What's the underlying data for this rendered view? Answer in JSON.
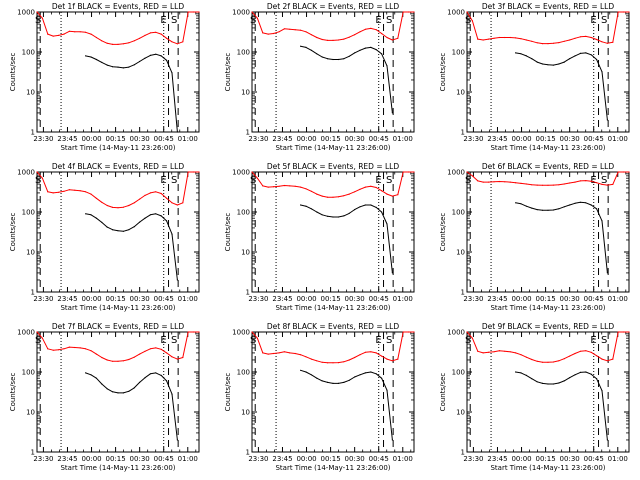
{
  "figure": {
    "background": "#ffffff",
    "series_colors": {
      "events": "#000000",
      "lld": "#ff0000"
    }
  },
  "chart_data": [
    {
      "type": "line",
      "title": "Det 1f BLACK = Events, RED = LLD",
      "xlabel": "Start Time (14-May-11 23:26:00)",
      "ylabel": "Counts/sec",
      "ylog": true,
      "ylim": [
        1,
        1000
      ],
      "xlim": [
        "23:26",
        "01:07"
      ],
      "yticks": [
        "1",
        "10",
        "100",
        "1000"
      ],
      "xticks": [
        "23:30",
        "23:45",
        "00:00",
        "00:15",
        "00:30",
        "00:45",
        "01:00"
      ],
      "markers": [
        "S",
        "E",
        "S"
      ],
      "series": [
        {
          "color": "#000000",
          "values": [
            null,
            null,
            null,
            null,
            null,
            null,
            null,
            null,
            null,
            80,
            75,
            65,
            55,
            47,
            43,
            42,
            40,
            42,
            48,
            58,
            70,
            82,
            88,
            80,
            62,
            30,
            1,
            null,
            null,
            null,
            null
          ]
        },
        {
          "color": "#ff0000",
          "values": [
            1000,
            700,
            280,
            250,
            260,
            280,
            330,
            320,
            320,
            310,
            280,
            230,
            190,
            165,
            155,
            155,
            160,
            170,
            190,
            220,
            260,
            300,
            310,
            280,
            220,
            180,
            160,
            180,
            1000,
            1000,
            1000
          ]
        }
      ]
    },
    {
      "type": "line",
      "title": "Det 2f BLACK = Events, RED = LLD",
      "xlabel": "Start Time (14-May-11 23:26:00)",
      "ylabel": "Counts/sec",
      "ylog": true,
      "ylim": [
        1,
        1000
      ],
      "xlim": [
        "23:26",
        "01:07"
      ],
      "yticks": [
        "1",
        "10",
        "100",
        "1000"
      ],
      "xticks": [
        "23:30",
        "23:45",
        "00:00",
        "00:15",
        "00:30",
        "00:45",
        "01:00"
      ],
      "markers": [
        "S",
        "E",
        "S"
      ],
      "series": [
        {
          "color": "#000000",
          "values": [
            null,
            null,
            null,
            null,
            null,
            null,
            null,
            null,
            null,
            140,
            130,
            110,
            90,
            75,
            68,
            65,
            65,
            68,
            78,
            95,
            110,
            125,
            130,
            115,
            90,
            45,
            3,
            null,
            null,
            null,
            null
          ]
        },
        {
          "color": "#ff0000",
          "values": [
            1000,
            700,
            300,
            280,
            290,
            320,
            380,
            370,
            360,
            350,
            320,
            270,
            230,
            205,
            195,
            195,
            200,
            210,
            235,
            270,
            320,
            370,
            390,
            360,
            290,
            230,
            200,
            220,
            1000,
            1000,
            1000
          ]
        }
      ]
    },
    {
      "type": "line",
      "title": "Det 3f BLACK = Events, RED = LLD",
      "xlabel": "Start Time (14-May-11 23:26:00)",
      "ylabel": "Counts/sec",
      "ylog": true,
      "ylim": [
        1,
        1000
      ],
      "xlim": [
        "23:26",
        "01:07"
      ],
      "yticks": [
        "1",
        "10",
        "100",
        "1000"
      ],
      "xticks": [
        "23:30",
        "23:45",
        "00:00",
        "00:15",
        "00:30",
        "00:45",
        "01:00"
      ],
      "markers": [
        "S",
        "E",
        "S"
      ],
      "series": [
        {
          "color": "#000000",
          "values": [
            null,
            null,
            null,
            null,
            null,
            null,
            null,
            null,
            null,
            95,
            90,
            80,
            68,
            56,
            50,
            48,
            47,
            50,
            56,
            68,
            80,
            92,
            95,
            85,
            65,
            32,
            2,
            null,
            null,
            null,
            null
          ]
        },
        {
          "color": "#ff0000",
          "values": [
            1000,
            600,
            210,
            200,
            210,
            220,
            230,
            230,
            230,
            225,
            215,
            200,
            185,
            170,
            162,
            162,
            165,
            172,
            185,
            200,
            220,
            240,
            245,
            230,
            205,
            180,
            165,
            175,
            1000,
            1000,
            1000
          ]
        }
      ]
    },
    {
      "type": "line",
      "title": "Det 4f BLACK = Events, RED = LLD",
      "xlabel": "Start Time (14-May-11 23:26:00)",
      "ylabel": "Counts/sec",
      "ylog": true,
      "ylim": [
        1,
        1000
      ],
      "xlim": [
        "23:26",
        "01:07"
      ],
      "yticks": [
        "1",
        "10",
        "100",
        "1000"
      ],
      "xticks": [
        "23:30",
        "23:45",
        "00:00",
        "00:15",
        "00:30",
        "00:45",
        "01:00"
      ],
      "markers": [
        "S",
        "E",
        "S"
      ],
      "series": [
        {
          "color": "#000000",
          "values": [
            null,
            null,
            null,
            null,
            null,
            null,
            null,
            null,
            null,
            90,
            85,
            70,
            55,
            42,
            36,
            34,
            33,
            36,
            43,
            56,
            70,
            85,
            90,
            80,
            60,
            28,
            2,
            null,
            null,
            null,
            null
          ]
        },
        {
          "color": "#ff0000",
          "values": [
            1000,
            700,
            320,
            300,
            310,
            330,
            360,
            350,
            340,
            320,
            280,
            220,
            175,
            145,
            130,
            128,
            132,
            145,
            170,
            210,
            260,
            300,
            320,
            290,
            220,
            170,
            150,
            170,
            1000,
            1000,
            1000
          ]
        }
      ]
    },
    {
      "type": "line",
      "title": "Det 5f BLACK = Events, RED = LLD",
      "xlabel": "Start Time (14-May-11 23:26:00)",
      "ylabel": "Counts/sec",
      "ylog": true,
      "ylim": [
        1,
        1000
      ],
      "xlim": [
        "23:26",
        "01:07"
      ],
      "yticks": [
        "1",
        "10",
        "100",
        "1000"
      ],
      "xticks": [
        "23:30",
        "23:45",
        "00:00",
        "00:15",
        "00:30",
        "00:45",
        "01:00"
      ],
      "markers": [
        "S",
        "E",
        "S"
      ],
      "series": [
        {
          "color": "#000000",
          "values": [
            null,
            null,
            null,
            null,
            null,
            null,
            null,
            null,
            null,
            150,
            140,
            120,
            100,
            85,
            78,
            75,
            75,
            80,
            92,
            115,
            135,
            150,
            150,
            130,
            100,
            50,
            3,
            null,
            null,
            null,
            null
          ]
        },
        {
          "color": "#ff0000",
          "values": [
            1000,
            700,
            450,
            420,
            430,
            440,
            460,
            450,
            440,
            420,
            380,
            330,
            280,
            250,
            235,
            235,
            240,
            255,
            280,
            320,
            370,
            420,
            440,
            410,
            340,
            280,
            250,
            270,
            1000,
            1000,
            1000
          ]
        }
      ]
    },
    {
      "type": "line",
      "title": "Det 6f BLACK = Events, RED = LLD",
      "xlabel": "Start Time (14-May-11 23:26:00)",
      "ylabel": "Counts/sec",
      "ylog": true,
      "ylim": [
        1,
        1000
      ],
      "xlim": [
        "23:26",
        "01:07"
      ],
      "yticks": [
        "1",
        "10",
        "100",
        "1000"
      ],
      "xticks": [
        "23:30",
        "23:45",
        "00:00",
        "00:15",
        "00:30",
        "00:45",
        "01:00"
      ],
      "markers": [
        "S",
        "E",
        "S"
      ],
      "series": [
        {
          "color": "#000000",
          "values": [
            null,
            null,
            null,
            null,
            null,
            null,
            null,
            null,
            null,
            170,
            160,
            140,
            125,
            115,
            110,
            110,
            112,
            120,
            135,
            150,
            165,
            175,
            170,
            150,
            120,
            60,
            3,
            null,
            null,
            null,
            null
          ]
        },
        {
          "color": "#ff0000",
          "values": [
            1000,
            800,
            600,
            560,
            560,
            570,
            580,
            570,
            560,
            540,
            520,
            500,
            480,
            470,
            465,
            465,
            470,
            480,
            500,
            530,
            560,
            600,
            610,
            590,
            540,
            490,
            470,
            490,
            1000,
            1000,
            1000
          ]
        }
      ]
    },
    {
      "type": "line",
      "title": "Det 7f BLACK = Events, RED = LLD",
      "xlabel": "Start Time (14-May-11 23:26:00)",
      "ylabel": "Counts/sec",
      "ylog": true,
      "ylim": [
        1,
        1000
      ],
      "xlim": [
        "23:26",
        "01:07"
      ],
      "yticks": [
        "1",
        "10",
        "100",
        "1000"
      ],
      "xticks": [
        "23:30",
        "23:45",
        "00:00",
        "00:15",
        "00:30",
        "00:45",
        "01:00"
      ],
      "markers": [
        "S",
        "E",
        "S"
      ],
      "series": [
        {
          "color": "#000000",
          "values": [
            null,
            null,
            null,
            null,
            null,
            null,
            null,
            null,
            null,
            95,
            85,
            70,
            50,
            38,
            32,
            30,
            30,
            33,
            40,
            55,
            72,
            90,
            95,
            82,
            60,
            28,
            2,
            null,
            null,
            null,
            null
          ]
        },
        {
          "color": "#ff0000",
          "values": [
            1000,
            700,
            380,
            350,
            360,
            380,
            420,
            410,
            400,
            380,
            340,
            280,
            230,
            200,
            185,
            185,
            190,
            205,
            235,
            280,
            330,
            380,
            400,
            370,
            300,
            240,
            210,
            230,
            1000,
            1000,
            1000
          ]
        }
      ]
    },
    {
      "type": "line",
      "title": "Det 8f BLACK = Events, RED = LLD",
      "xlabel": "Start Time (14-May-11 23:26:00)",
      "ylabel": "Counts/sec",
      "ylog": true,
      "ylim": [
        1,
        1000
      ],
      "xlim": [
        "23:26",
        "01:07"
      ],
      "yticks": [
        "1",
        "10",
        "100",
        "1000"
      ],
      "xticks": [
        "23:30",
        "23:45",
        "00:00",
        "00:15",
        "00:30",
        "00:45",
        "01:00"
      ],
      "markers": [
        "S",
        "E",
        "S"
      ],
      "series": [
        {
          "color": "#000000",
          "values": [
            null,
            null,
            null,
            null,
            null,
            null,
            null,
            null,
            null,
            110,
            100,
            85,
            70,
            60,
            55,
            52,
            52,
            55,
            62,
            75,
            85,
            95,
            100,
            90,
            70,
            35,
            2,
            null,
            null,
            null,
            null
          ]
        },
        {
          "color": "#ff0000",
          "values": [
            1000,
            700,
            300,
            280,
            290,
            300,
            320,
            300,
            290,
            270,
            240,
            210,
            190,
            175,
            170,
            170,
            172,
            180,
            200,
            230,
            270,
            310,
            320,
            300,
            250,
            210,
            190,
            210,
            1000,
            1000,
            1000
          ]
        }
      ]
    },
    {
      "type": "line",
      "title": "Det 9f BLACK = Events, RED = LLD",
      "xlabel": "Start Time (14-May-11 23:26:00)",
      "ylabel": "Counts/sec",
      "ylog": true,
      "ylim": [
        1,
        1000
      ],
      "xlim": [
        "23:26",
        "01:07"
      ],
      "yticks": [
        "1",
        "10",
        "100",
        "1000"
      ],
      "xticks": [
        "23:30",
        "23:45",
        "00:00",
        "00:15",
        "00:30",
        "00:45",
        "01:00"
      ],
      "markers": [
        "S",
        "E",
        "S"
      ],
      "series": [
        {
          "color": "#000000",
          "values": [
            null,
            null,
            null,
            null,
            null,
            null,
            null,
            null,
            null,
            100,
            95,
            82,
            68,
            57,
            52,
            50,
            50,
            53,
            60,
            72,
            85,
            98,
            100,
            88,
            68,
            34,
            2,
            null,
            null,
            null,
            null
          ]
        },
        {
          "color": "#ff0000",
          "values": [
            1000,
            700,
            330,
            300,
            310,
            320,
            340,
            330,
            320,
            300,
            270,
            235,
            205,
            185,
            175,
            175,
            178,
            190,
            215,
            250,
            290,
            330,
            340,
            310,
            255,
            210,
            190,
            210,
            1000,
            1000,
            1000
          ]
        }
      ]
    }
  ]
}
